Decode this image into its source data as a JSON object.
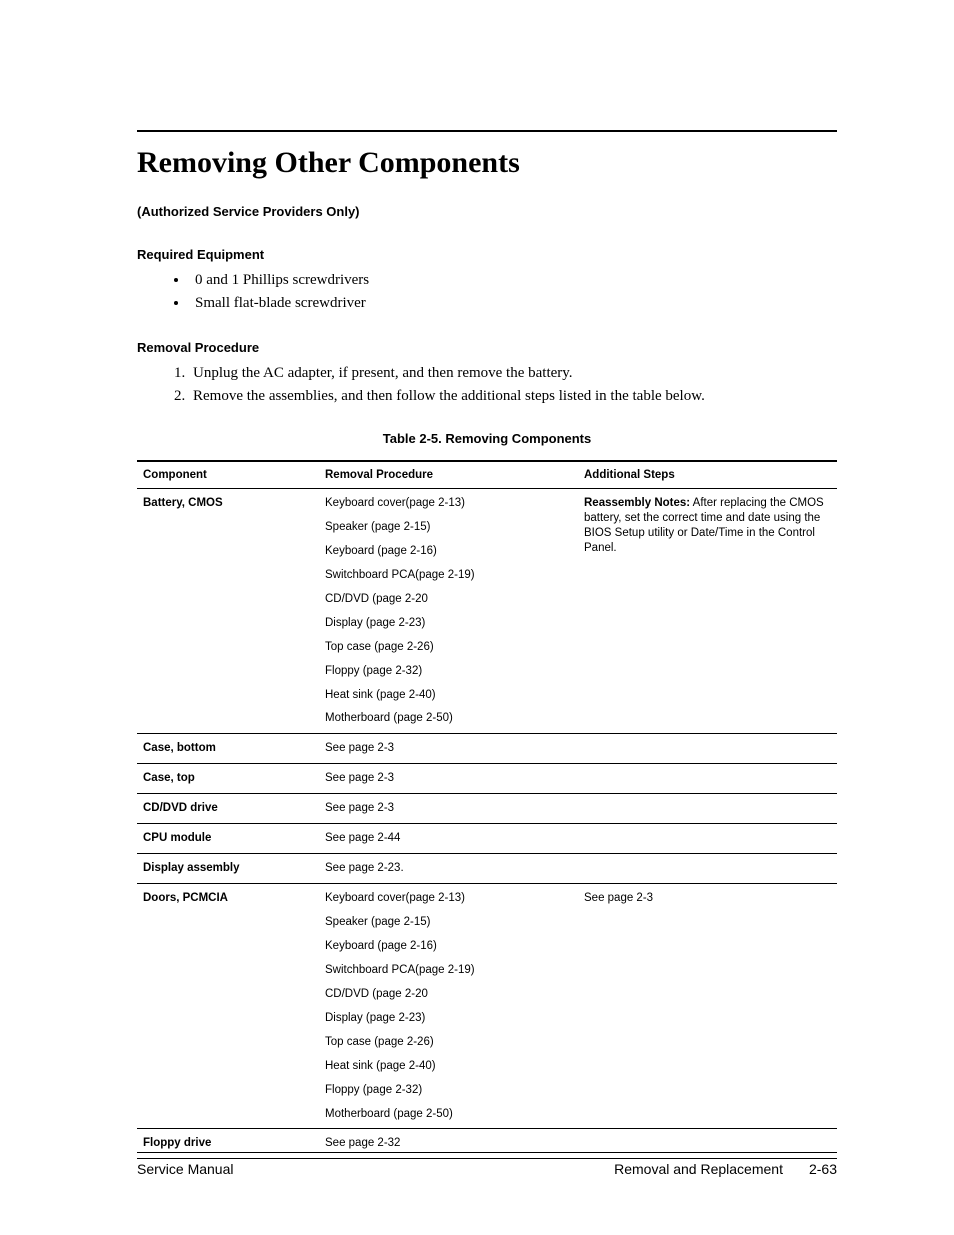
{
  "title": "Removing Other Components",
  "subtitle": "(Authorized Service Providers Only)",
  "sections": {
    "equipment": {
      "heading": "Required Equipment",
      "items": [
        "0 and 1 Phillips screwdrivers",
        "Small flat-blade screwdriver"
      ]
    },
    "procedure": {
      "heading": "Removal Procedure",
      "steps": [
        "Unplug the AC adapter, if present, and then remove the battery.",
        "Remove the assemblies, and then follow the additional steps listed in the table below."
      ]
    }
  },
  "table": {
    "caption": "Table 2-5. Removing Components",
    "headers": {
      "component": "Component",
      "removal": "Removal Procedure",
      "additional": "Additional Steps"
    },
    "rows": [
      {
        "component": "Battery, CMOS",
        "removal": [
          "Keyboard cover(page 2-13)",
          "Speaker (page 2-15)",
          "Keyboard (page 2-16)",
          "Switchboard PCA(page 2-19)",
          "CD/DVD (page 2-20",
          "Display (page 2-23)",
          "Top case (page 2-26)",
          "Floppy (page 2-32)",
          "Heat sink (page 2-40)",
          "Motherboard (page 2-50)"
        ],
        "additional_label": "Reassembly Notes:",
        "additional_text": " After replacing the CMOS battery, set the correct time and date using the BIOS Setup utility or Date/Time in the Control Panel."
      },
      {
        "component": "Case, bottom",
        "removal": [
          "See page 2-3"
        ],
        "additional_label": "",
        "additional_text": ""
      },
      {
        "component": "Case, top",
        "removal": [
          "See page 2-3"
        ],
        "additional_label": "",
        "additional_text": ""
      },
      {
        "component": "CD/DVD drive",
        "removal": [
          "See page 2-3"
        ],
        "additional_label": "",
        "additional_text": ""
      },
      {
        "component": "CPU module",
        "removal": [
          "See page 2-44"
        ],
        "additional_label": "",
        "additional_text": ""
      },
      {
        "component": "Display assembly",
        "removal": [
          "See page 2-23."
        ],
        "additional_label": "",
        "additional_text": ""
      },
      {
        "component": "Doors, PCMCIA",
        "removal": [
          "Keyboard cover(page 2-13)",
          "Speaker (page 2-15)",
          "Keyboard (page 2-16)",
          "Switchboard PCA(page 2-19)",
          "CD/DVD (page 2-20",
          "Display (page 2-23)",
          "Top case (page 2-26)",
          "Heat sink (page 2-40)",
          "Floppy (page 2-32)",
          "Motherboard (page 2-50)"
        ],
        "additional_label": "",
        "additional_text": "See page 2-3"
      },
      {
        "component": "Floppy drive",
        "removal": [
          "See page 2-32"
        ],
        "additional_label": "",
        "additional_text": ""
      }
    ]
  },
  "footer": {
    "left": "Service Manual",
    "right_label": "Removal and Replacement",
    "page": "2-63"
  }
}
